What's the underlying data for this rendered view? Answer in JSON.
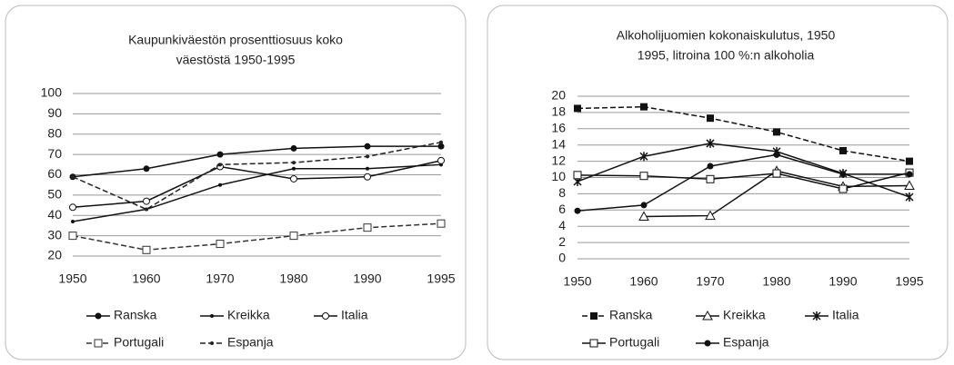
{
  "chart_data": [
    {
      "type": "line",
      "title": [
        "Kaupunkiväestön prosenttiosuus koko",
        "väestöstä 1950-1995"
      ],
      "categories": [
        "1950",
        "1960",
        "1970",
        "1980",
        "1990",
        "1995"
      ],
      "ylim": [
        20,
        100
      ],
      "yticks": [
        20,
        30,
        40,
        50,
        60,
        70,
        80,
        90,
        100
      ],
      "grid": true,
      "series": [
        {
          "name": "Ranska",
          "color": "#111111",
          "marker": "circle",
          "dash": false,
          "values": [
            59,
            63,
            70,
            73,
            74,
            74
          ]
        },
        {
          "name": "Kreikka",
          "color": "#111111",
          "marker": "dot",
          "dash": false,
          "values": [
            37,
            43,
            55,
            63,
            63,
            65
          ]
        },
        {
          "name": "Italia",
          "color": "#111111",
          "marker": "open-circle",
          "dash": false,
          "values": [
            44,
            47,
            64,
            58,
            59,
            67
          ]
        },
        {
          "name": "Portugali",
          "color": "#333333",
          "marker": "open-square",
          "dash": true,
          "values": [
            30,
            23,
            26,
            30,
            34,
            36
          ]
        },
        {
          "name": "Espanja",
          "color": "#222222",
          "marker": "dot",
          "dash": true,
          "values": [
            59,
            43,
            65,
            66,
            69,
            76
          ]
        }
      ]
    },
    {
      "type": "line",
      "title": [
        "Alkoholijuomien kokonaiskulutus, 1950",
        "1995, litroina 100 %:n alkoholia"
      ],
      "categories": [
        "1950",
        "1960",
        "1970",
        "1980",
        "1990",
        "1995"
      ],
      "ylim": [
        0,
        20
      ],
      "yticks": [
        0,
        2,
        4,
        6,
        8,
        10,
        12,
        14,
        16,
        18,
        20
      ],
      "grid": true,
      "series": [
        {
          "name": "Ranska",
          "color": "#111111",
          "marker": "square",
          "dash": true,
          "values": [
            18.5,
            18.7,
            17.3,
            15.6,
            13.3,
            12.0
          ]
        },
        {
          "name": "Kreikka",
          "color": "#111111",
          "marker": "triangle",
          "dash": false,
          "values": [
            null,
            5.2,
            5.3,
            10.8,
            8.9,
            9.0
          ]
        },
        {
          "name": "Italia",
          "color": "#111111",
          "marker": "star",
          "dash": false,
          "values": [
            9.5,
            12.6,
            14.2,
            13.2,
            10.5,
            7.6
          ]
        },
        {
          "name": "Portugali",
          "color": "#111111",
          "marker": "open-square",
          "dash": false,
          "values": [
            10.3,
            10.2,
            9.8,
            10.5,
            8.6,
            10.6
          ]
        },
        {
          "name": "Espanja",
          "color": "#111111",
          "marker": "circle",
          "dash": false,
          "values": [
            5.9,
            6.6,
            11.4,
            12.8,
            10.4,
            10.4
          ]
        }
      ]
    }
  ]
}
